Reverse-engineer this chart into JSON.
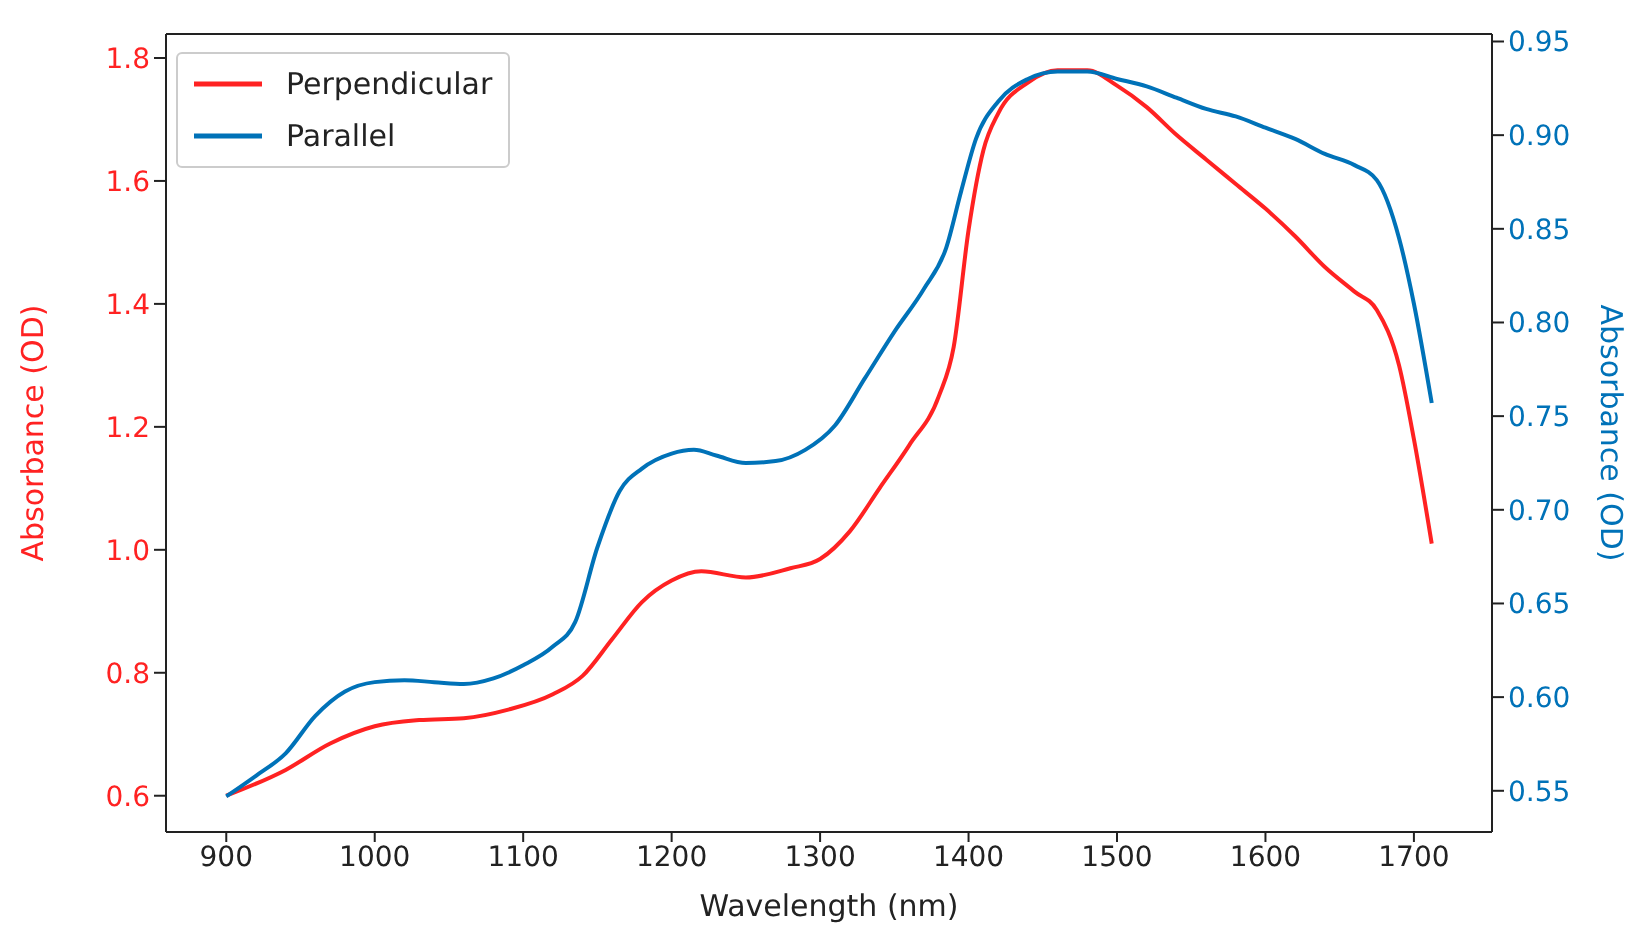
{
  "chart_data": {
    "type": "line",
    "xlabel": "Wavelength (nm)",
    "ylabel": "Absorbance (OD)",
    "y2label": "Absorbance (OD)",
    "xlim": [
      859.4,
      1752.6
    ],
    "xticks": [
      900,
      1000,
      1100,
      1200,
      1300,
      1400,
      1500,
      1600,
      1700
    ],
    "ylim": [
      0.541,
      1.839
    ],
    "yticks": [
      0.6,
      0.8,
      {
        "value": 1.0,
        "label": "1.0"
      },
      1.2,
      1.4,
      1.6,
      1.8
    ],
    "y2lim": [
      0.528,
      0.954
    ],
    "y2ticks": [
      0.55,
      {
        "value": 0.6,
        "label": "0.60"
      },
      0.65,
      {
        "value": 0.7,
        "label": "0.70"
      },
      0.75,
      {
        "value": 0.8,
        "label": "0.80"
      },
      0.85,
      {
        "value": 0.9,
        "label": "0.90"
      },
      0.95
    ],
    "legend": "top left",
    "grid": false,
    "marker": "none",
    "line_style": "solid",
    "series": [
      {
        "name": "Perpendicular",
        "color": "#ff2222",
        "axis": "y",
        "x": [
          900,
          940,
          970,
          1000,
          1030,
          1060,
          1090,
          1120,
          1140,
          1160,
          1180,
          1200,
          1220,
          1250,
          1280,
          1300,
          1320,
          1340,
          1360,
          1380,
          1390,
          1400,
          1410,
          1420,
          1440,
          1460,
          1480,
          1500,
          1520,
          1540,
          1560,
          1580,
          1600,
          1620,
          1640,
          1660,
          1675,
          1690,
          1700,
          1712
        ],
        "values": [
          0.6,
          0.642,
          0.685,
          0.713,
          0.723,
          0.726,
          0.74,
          0.765,
          0.795,
          0.855,
          0.915,
          0.95,
          0.965,
          0.955,
          0.97,
          0.985,
          1.03,
          1.1,
          1.17,
          1.25,
          1.33,
          1.52,
          1.65,
          1.71,
          1.76,
          1.78,
          1.78,
          1.755,
          1.72,
          1.675,
          1.635,
          1.595,
          1.555,
          1.51,
          1.46,
          1.42,
          1.39,
          1.3,
          1.18,
          1.01
        ]
      },
      {
        "name": "Parallel",
        "color": "#0072b8",
        "axis": "y2",
        "x": [
          900,
          920,
          940,
          960,
          980,
          1000,
          1020,
          1040,
          1060,
          1080,
          1100,
          1120,
          1135,
          1150,
          1165,
          1180,
          1200,
          1215,
          1230,
          1250,
          1270,
          1290,
          1310,
          1330,
          1350,
          1370,
          1385,
          1395,
          1405,
          1420,
          1440,
          1460,
          1480,
          1500,
          1520,
          1540,
          1560,
          1580,
          1600,
          1620,
          1640,
          1660,
          1675,
          1690,
          1700,
          1712
        ],
        "values": [
          0.547,
          0.558,
          0.57,
          0.59,
          0.603,
          0.608,
          0.609,
          0.608,
          0.607,
          0.61,
          0.617,
          0.627,
          0.64,
          0.68,
          0.71,
          0.722,
          0.73,
          0.732,
          0.729,
          0.725,
          0.726,
          0.732,
          0.745,
          0.77,
          0.795,
          0.818,
          0.84,
          0.87,
          0.898,
          0.918,
          0.93,
          0.934,
          0.934,
          0.93,
          0.926,
          0.92,
          0.914,
          0.91,
          0.904,
          0.898,
          0.89,
          0.884,
          0.876,
          0.845,
          0.81,
          0.757
        ]
      }
    ]
  }
}
